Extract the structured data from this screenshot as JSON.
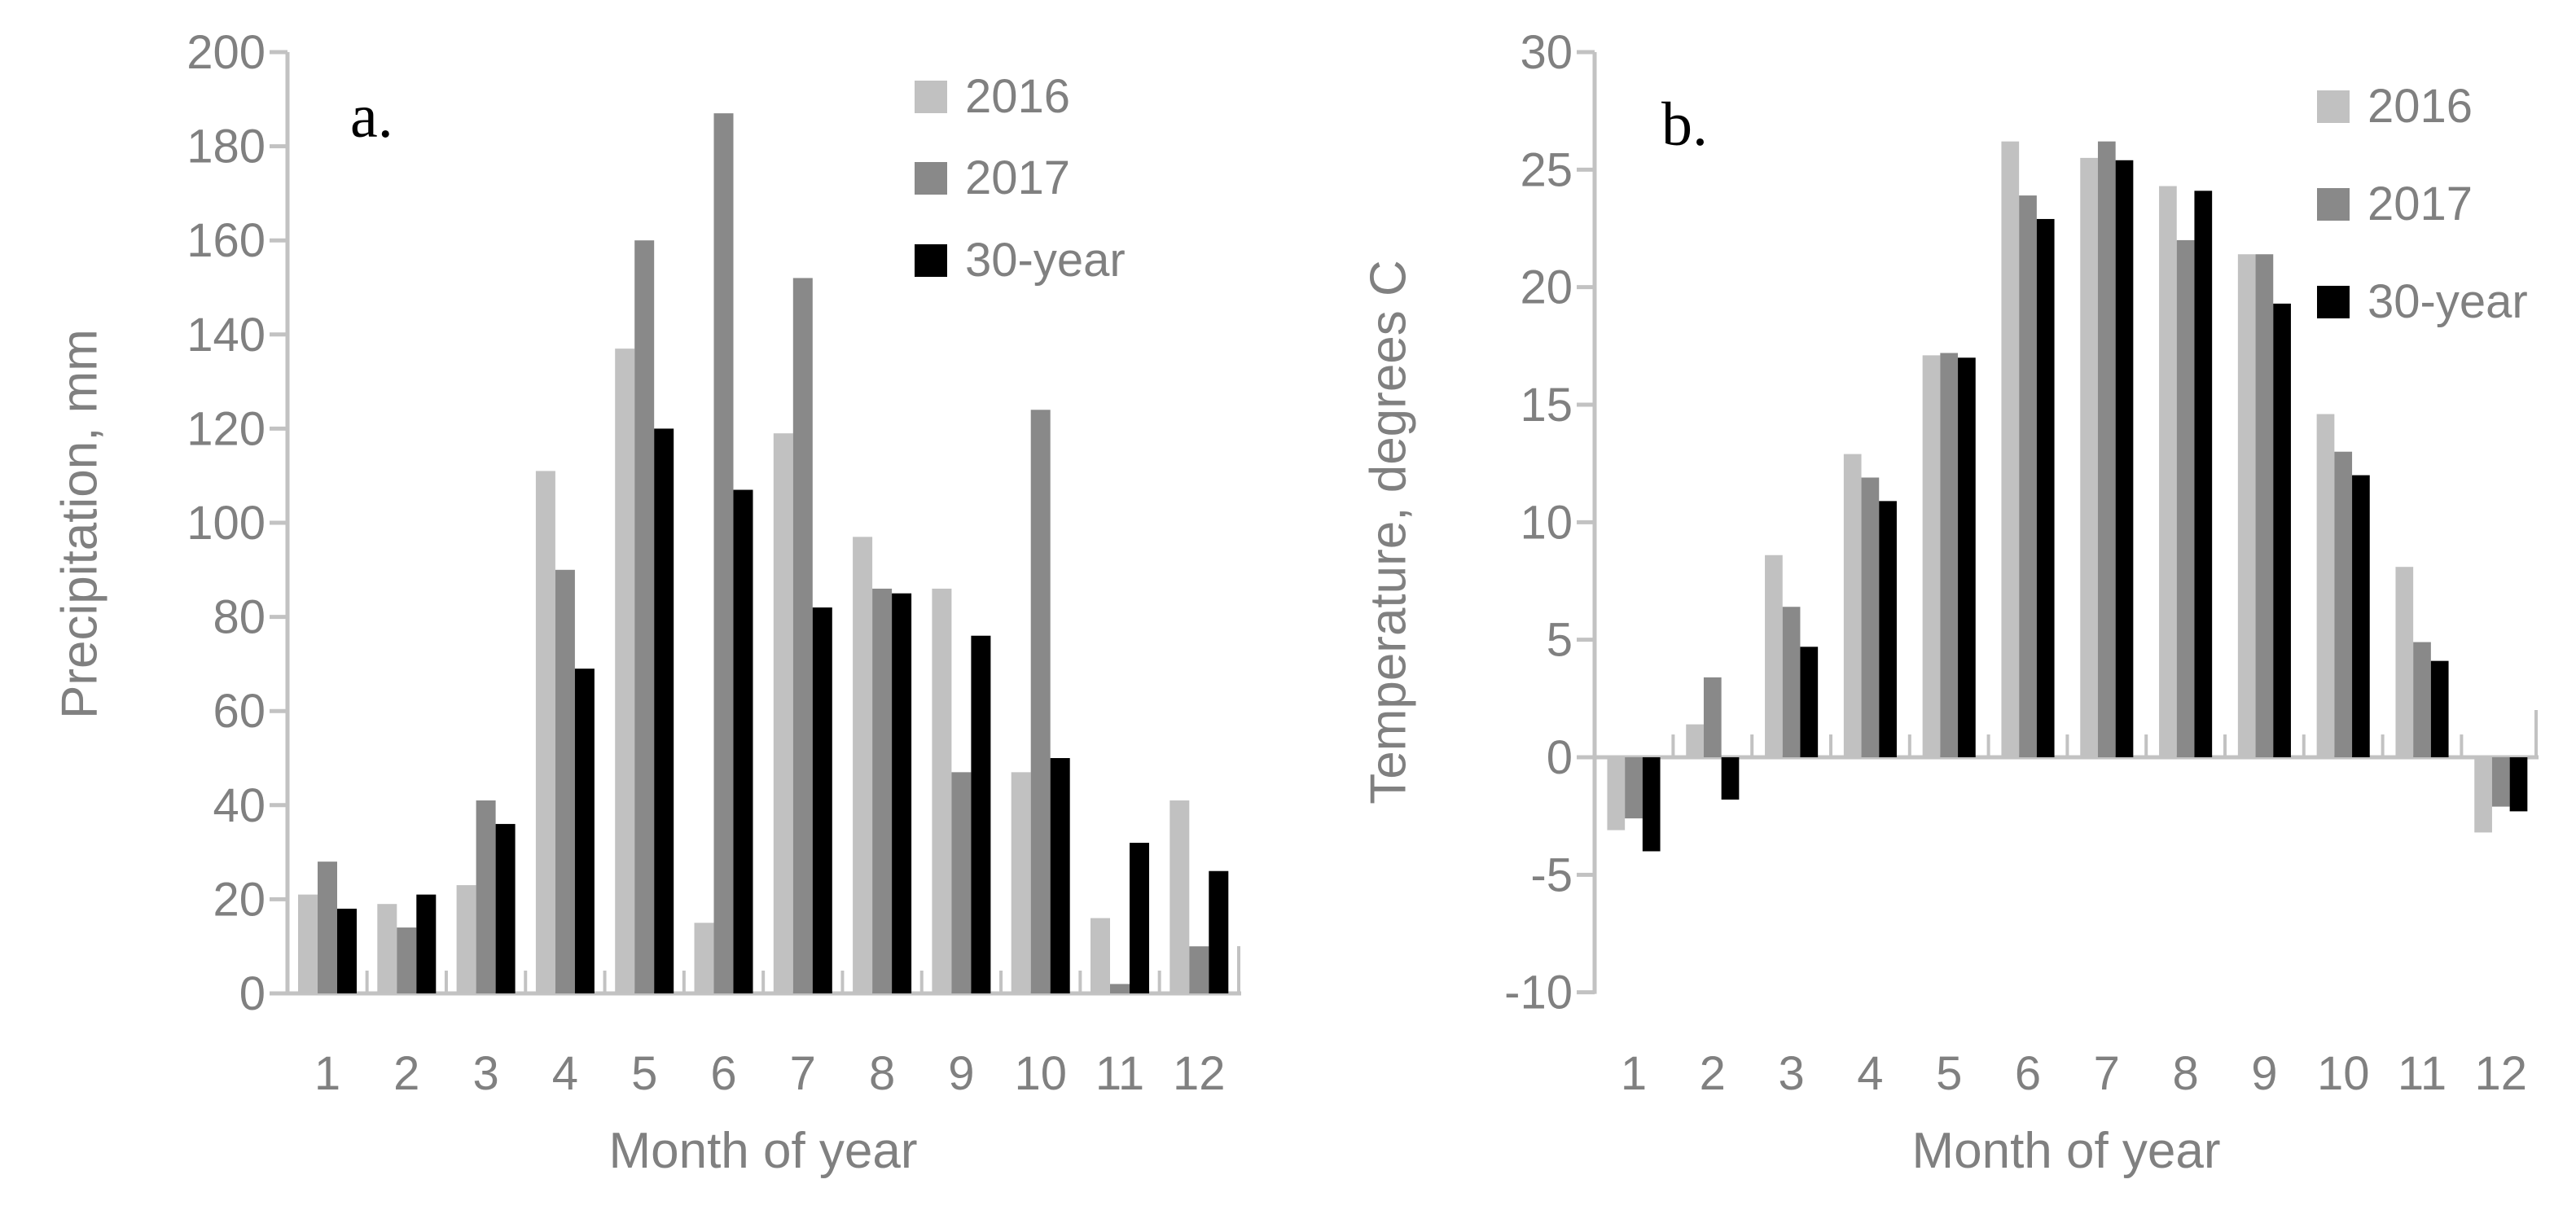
{
  "figure": {
    "background": "#ffffff",
    "text_color": "#808080",
    "axis_color": "#c2c2c2"
  },
  "chart_data": [
    {
      "type": "bar",
      "panel_label": "a.",
      "title": "",
      "xlabel": "Month of year",
      "ylabel": "Precipitation, mm",
      "categories": [
        "1",
        "2",
        "3",
        "4",
        "5",
        "6",
        "7",
        "8",
        "9",
        "10",
        "11",
        "12"
      ],
      "ylim": [
        0,
        200
      ],
      "ytick_step": 20,
      "grid": "off",
      "legend_position": "top-right-inside",
      "series": [
        {
          "name": "2016",
          "color": "#c1c1c1",
          "values": [
            21,
            19,
            23,
            111,
            137,
            15,
            119,
            97,
            86,
            47,
            16,
            41
          ]
        },
        {
          "name": "2017",
          "color": "#898989",
          "values": [
            28,
            14,
            41,
            90,
            160,
            187,
            152,
            86,
            47,
            124,
            2,
            10
          ]
        },
        {
          "name": "30-year",
          "color": "#000000",
          "values": [
            18,
            21,
            36,
            69,
            120,
            107,
            82,
            85,
            76,
            50,
            32,
            26
          ]
        }
      ]
    },
    {
      "type": "bar",
      "panel_label": "b.",
      "title": "",
      "xlabel": "Month of year",
      "ylabel": "Temperature, degrees C",
      "categories": [
        "1",
        "2",
        "3",
        "4",
        "5",
        "6",
        "7",
        "8",
        "9",
        "10",
        "11",
        "12"
      ],
      "ylim": [
        -10,
        30
      ],
      "ytick_step": 5,
      "grid": "off",
      "legend_position": "top-right-inside",
      "series": [
        {
          "name": "2016",
          "color": "#c1c1c1",
          "values": [
            -3.1,
            1.4,
            8.6,
            12.9,
            17.1,
            26.2,
            25.5,
            24.3,
            21.4,
            14.6,
            8.1,
            -3.2
          ]
        },
        {
          "name": "2017",
          "color": "#898989",
          "values": [
            -2.6,
            3.4,
            6.4,
            11.9,
            17.2,
            23.9,
            26.2,
            22.0,
            21.4,
            13.0,
            4.9,
            -2.1
          ]
        },
        {
          "name": "30-year",
          "color": "#000000",
          "values": [
            -4.0,
            -1.8,
            4.7,
            10.9,
            17.0,
            22.9,
            25.4,
            24.1,
            19.3,
            12.0,
            4.1,
            -2.3
          ]
        }
      ]
    }
  ]
}
